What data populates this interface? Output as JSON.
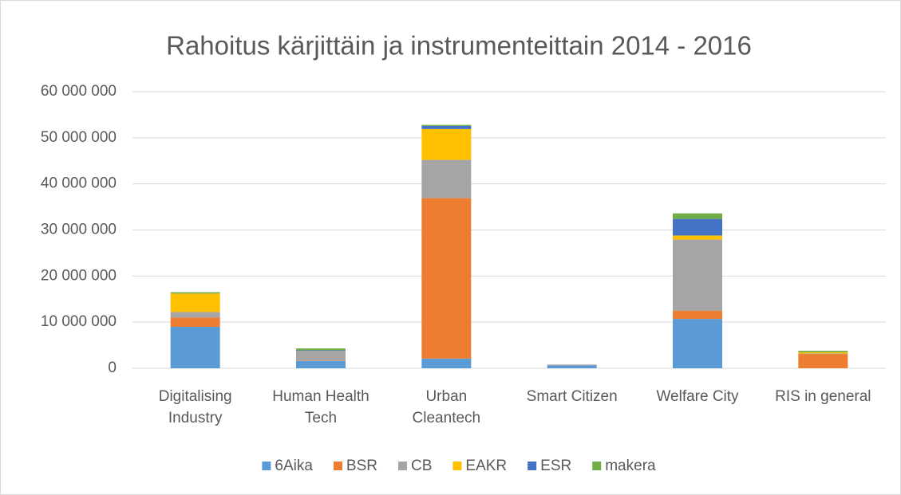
{
  "chart_data": {
    "type": "stacked_bar",
    "title": "Rahoitus kärjittäin ja instrumenteittain 2014 - 2016",
    "categories": [
      "Digitalising\nIndustry",
      "Human Health\nTech",
      "Urban\nCleantech",
      "Smart Citizen",
      "Welfare City",
      "RIS in general"
    ],
    "series": [
      {
        "name": "6Aika",
        "color": "#5b9bd5",
        "values": [
          9000000,
          1600000,
          2100000,
          600000,
          10700000,
          0
        ]
      },
      {
        "name": "BSR",
        "color": "#ed7d31",
        "values": [
          2000000,
          100000,
          34800000,
          0,
          1800000,
          3100000
        ]
      },
      {
        "name": "CB",
        "color": "#a5a5a5",
        "values": [
          1200000,
          2100000,
          8300000,
          200000,
          15400000,
          100000
        ]
      },
      {
        "name": "EAKR",
        "color": "#ffc000",
        "values": [
          4000000,
          0,
          6700000,
          0,
          900000,
          300000
        ]
      },
      {
        "name": "ESR",
        "color": "#4472c4",
        "values": [
          0,
          100000,
          700000,
          0,
          3600000,
          0
        ]
      },
      {
        "name": "makera",
        "color": "#70ad47",
        "values": [
          300000,
          400000,
          200000,
          0,
          1200000,
          300000
        ]
      }
    ],
    "ylim": [
      0,
      60000000
    ],
    "yticks": [
      0,
      {
        "value": 10000000,
        "label": "10 000 000"
      },
      {
        "value": 20000000,
        "label": "20 000 000"
      },
      {
        "value": 30000000,
        "label": "30 000 000"
      },
      {
        "value": 40000000,
        "label": "40 000 000"
      },
      {
        "value": 50000000,
        "label": "50 000 000"
      },
      {
        "value": 60000000,
        "label": "60 000 000"
      }
    ],
    "grid": true,
    "legend": "bottom"
  }
}
